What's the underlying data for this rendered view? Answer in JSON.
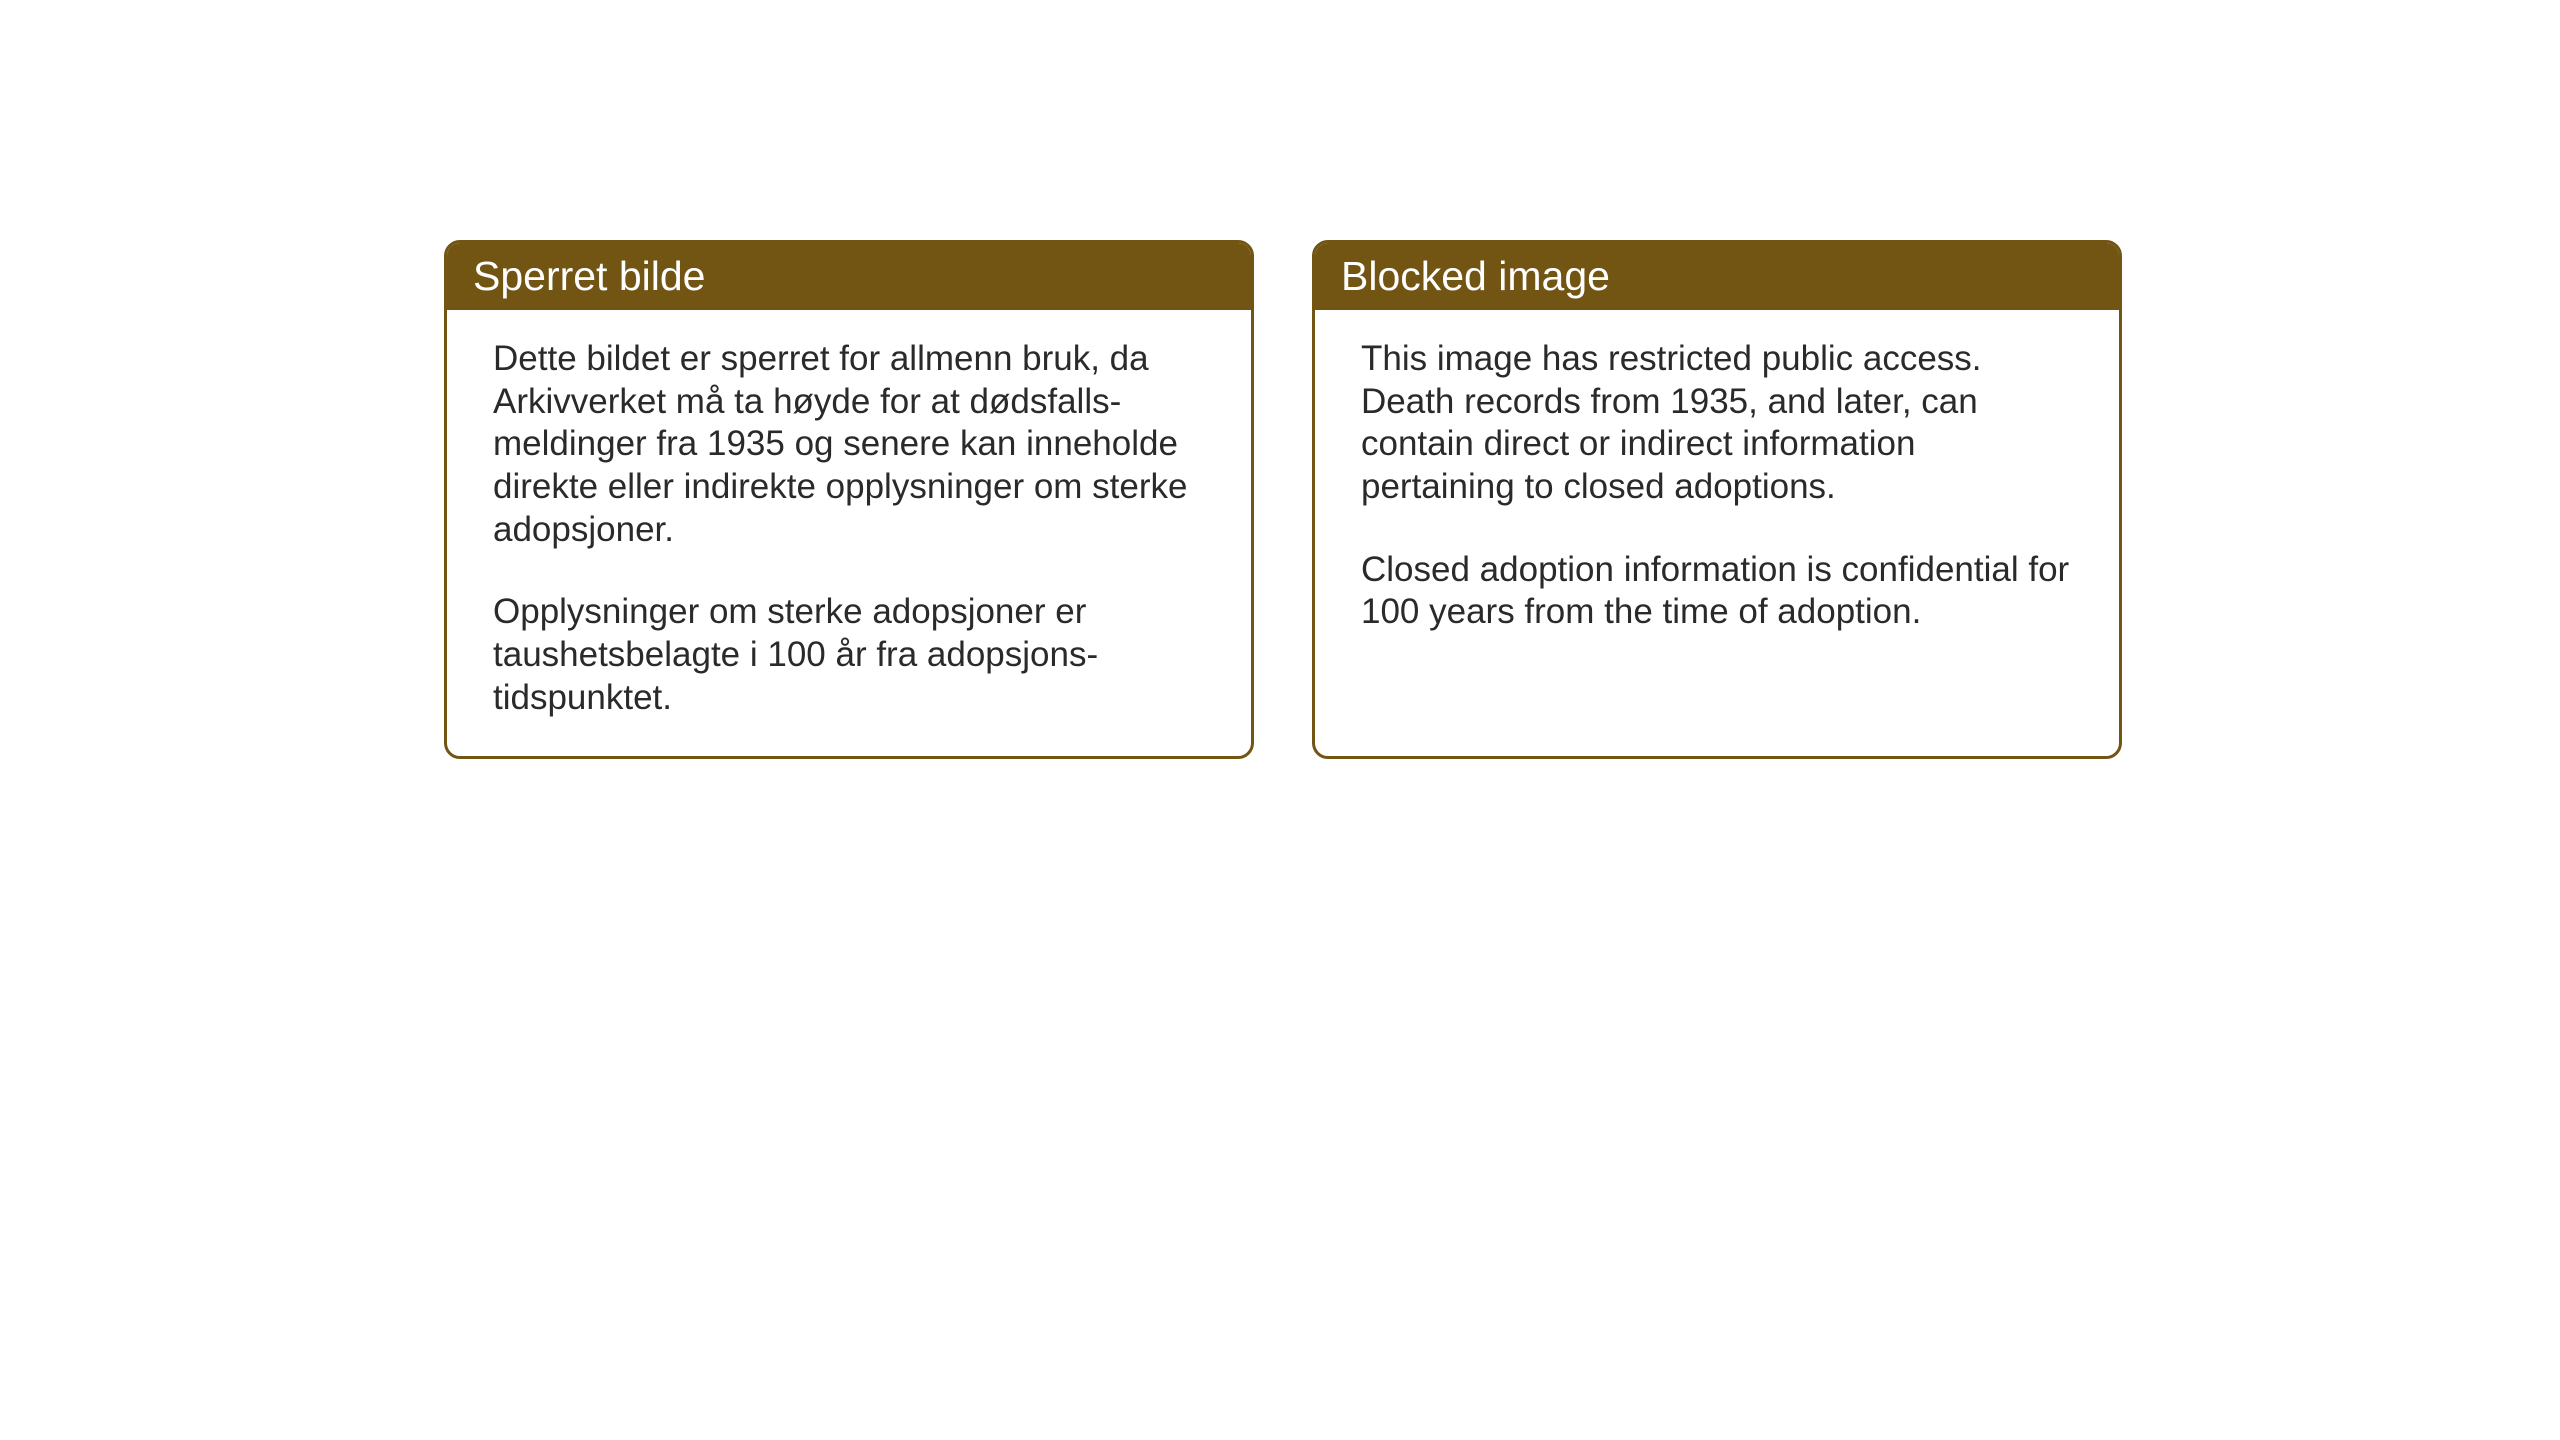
{
  "layout": {
    "background_color": "#ffffff",
    "box_border_color": "#725413",
    "box_border_width": 3,
    "box_border_radius": 16,
    "header_bg_color": "#725413",
    "header_text_color": "#ffffff",
    "body_text_color": "#2a2a2a",
    "header_fontsize": 41,
    "body_fontsize": 35
  },
  "boxes": {
    "left": {
      "header": "Sperret bilde",
      "paragraph1": "Dette bildet er sperret for allmenn bruk, da Arkivverket må ta høyde for at dødsfalls-meldinger fra 1935 og senere kan inneholde direkte eller indirekte opplysninger om sterke adopsjoner.",
      "paragraph2": "Opplysninger om sterke adopsjoner er taushetsbelagte i 100 år fra adopsjons-tidspunktet."
    },
    "right": {
      "header": "Blocked image",
      "paragraph1": "This image has restricted public access. Death records from 1935, and later, can contain direct or indirect information pertaining to closed adoptions.",
      "paragraph2": "Closed adoption information is confidential for 100 years from the time of adoption."
    }
  }
}
